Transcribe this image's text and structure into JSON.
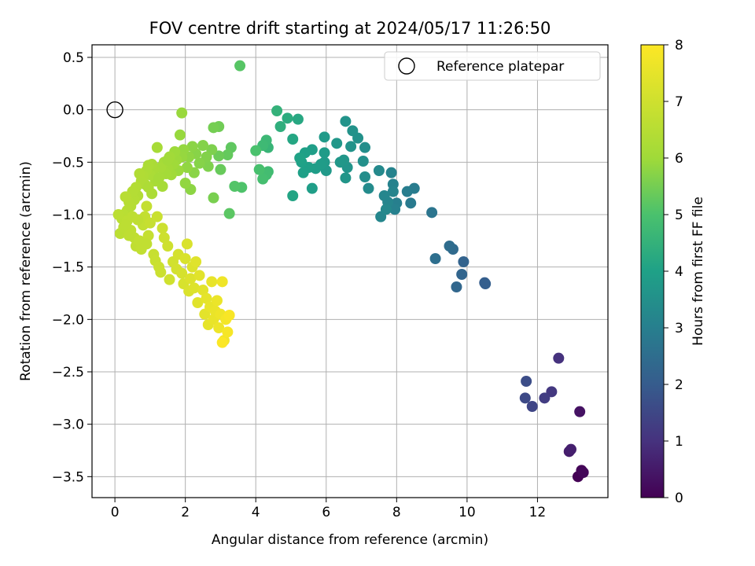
{
  "chart_data": {
    "type": "scatter",
    "title": "FOV centre drift starting at 2024/05/17 11:26:50",
    "xlabel": "Angular distance from reference (arcmin)",
    "ylabel": "Rotation from reference (arcmin)",
    "xlim": [
      -0.65,
      14.0
    ],
    "ylim": [
      -3.7,
      0.62
    ],
    "xticks": [
      0,
      2,
      4,
      6,
      8,
      10,
      12
    ],
    "yticks": [
      0.5,
      0.0,
      -0.5,
      -1.0,
      -1.5,
      -2.0,
      -2.5,
      -3.0,
      -3.5
    ],
    "xtick_labels": [
      "0",
      "2",
      "4",
      "6",
      "8",
      "10",
      "12"
    ],
    "ytick_labels": [
      "0.5",
      "0.0",
      "−0.5",
      "−1.0",
      "−1.5",
      "−2.0",
      "−2.5",
      "−3.0",
      "−3.5"
    ],
    "grid": true,
    "legend": {
      "position": "top-right",
      "entries": [
        "Reference platepar"
      ]
    },
    "reference_point": {
      "x": 0.0,
      "y": 0.0,
      "style": "hollow circle"
    },
    "colorbar": {
      "label": "Hours from first FF file",
      "range": [
        0,
        8
      ],
      "ticks": [
        0,
        1,
        2,
        3,
        4,
        5,
        6,
        7,
        8
      ],
      "tick_labels": [
        "0",
        "1",
        "2",
        "3",
        "4",
        "5",
        "6",
        "7",
        "8"
      ],
      "colormap": "viridis"
    },
    "points": [
      [
        13.15,
        -3.5,
        0.03
      ],
      [
        13.25,
        -3.44,
        0.08
      ],
      [
        13.3,
        -3.46,
        0.12
      ],
      [
        13.2,
        -2.88,
        0.35
      ],
      [
        12.9,
        -3.26,
        0.55
      ],
      [
        12.95,
        -3.24,
        0.62
      ],
      [
        12.6,
        -2.37,
        1.0
      ],
      [
        12.4,
        -2.69,
        1.15
      ],
      [
        12.2,
        -2.75,
        1.25
      ],
      [
        11.85,
        -2.83,
        1.45
      ],
      [
        11.65,
        -2.75,
        1.55
      ],
      [
        11.68,
        -2.59,
        1.65
      ],
      [
        10.5,
        -1.65,
        2.05
      ],
      [
        10.52,
        -1.66,
        2.08
      ],
      [
        9.9,
        -1.45,
        2.2
      ],
      [
        9.85,
        -1.57,
        2.25
      ],
      [
        9.7,
        -1.69,
        2.3
      ],
      [
        9.6,
        -1.33,
        2.4
      ],
      [
        9.5,
        -1.3,
        2.45
      ],
      [
        9.1,
        -1.42,
        2.55
      ],
      [
        9.0,
        -0.98,
        2.7
      ],
      [
        8.4,
        -0.89,
        2.85
      ],
      [
        8.5,
        -0.75,
        2.9
      ],
      [
        8.3,
        -0.78,
        2.95
      ],
      [
        8.0,
        -0.89,
        3.0
      ],
      [
        7.95,
        -0.95,
        3.05
      ],
      [
        7.9,
        -0.71,
        3.1
      ],
      [
        7.85,
        -0.6,
        3.12
      ],
      [
        7.9,
        -0.78,
        3.15
      ],
      [
        7.75,
        -0.88,
        3.18
      ],
      [
        7.65,
        -0.82,
        3.2
      ],
      [
        7.55,
        -1.02,
        3.22
      ],
      [
        7.7,
        -0.95,
        3.25
      ],
      [
        7.5,
        -0.58,
        3.3
      ],
      [
        7.2,
        -0.75,
        3.35
      ],
      [
        7.1,
        -0.64,
        3.4
      ],
      [
        7.1,
        -0.36,
        3.45
      ],
      [
        7.05,
        -0.49,
        3.5
      ],
      [
        6.9,
        -0.27,
        3.52
      ],
      [
        6.75,
        -0.2,
        3.55
      ],
      [
        6.7,
        -0.35,
        3.58
      ],
      [
        6.55,
        -0.11,
        3.6
      ],
      [
        6.6,
        -0.55,
        3.62
      ],
      [
        6.55,
        -0.65,
        3.65
      ],
      [
        6.5,
        -0.48,
        3.68
      ],
      [
        6.4,
        -0.5,
        3.7
      ],
      [
        6.3,
        -0.32,
        3.72
      ],
      [
        6.0,
        -0.58,
        3.75
      ],
      [
        5.95,
        -0.26,
        3.78
      ],
      [
        5.95,
        -0.5,
        3.8
      ],
      [
        5.95,
        -0.41,
        3.82
      ],
      [
        5.85,
        -0.52,
        3.85
      ],
      [
        5.7,
        -0.56,
        3.88
      ],
      [
        5.6,
        -0.38,
        3.9
      ],
      [
        5.6,
        -0.75,
        3.92
      ],
      [
        5.5,
        -0.55,
        3.94
      ],
      [
        5.4,
        -0.41,
        3.96
      ],
      [
        5.35,
        -0.6,
        3.98
      ],
      [
        5.3,
        -0.5,
        4.0
      ],
      [
        5.25,
        -0.46,
        4.02
      ],
      [
        5.05,
        -0.82,
        4.1
      ],
      [
        5.05,
        -0.28,
        4.15
      ],
      [
        5.2,
        -0.09,
        4.2
      ],
      [
        4.9,
        -0.08,
        4.3
      ],
      [
        4.7,
        -0.16,
        4.4
      ],
      [
        4.6,
        -0.01,
        4.5
      ],
      [
        4.35,
        -0.36,
        4.6
      ],
      [
        4.3,
        -0.29,
        4.7
      ],
      [
        4.2,
        -0.34,
        4.75
      ],
      [
        4.35,
        -0.59,
        4.8
      ],
      [
        4.3,
        -0.62,
        4.85
      ],
      [
        4.2,
        -0.66,
        4.9
      ],
      [
        4.1,
        -0.57,
        4.95
      ],
      [
        4.0,
        -0.39,
        5.0
      ],
      [
        3.6,
        -0.74,
        5.05
      ],
      [
        3.4,
        -0.73,
        5.1
      ],
      [
        3.55,
        0.42,
        5.15
      ],
      [
        3.25,
        -0.99,
        5.2
      ],
      [
        3.3,
        -0.36,
        5.25
      ],
      [
        3.2,
        -0.43,
        5.3
      ],
      [
        3.0,
        -0.57,
        5.35
      ],
      [
        2.95,
        -0.44,
        5.4
      ],
      [
        2.95,
        -0.16,
        5.45
      ],
      [
        2.8,
        -0.17,
        5.5
      ],
      [
        2.8,
        -0.84,
        5.55
      ],
      [
        2.75,
        -0.38,
        5.6
      ],
      [
        2.65,
        -0.54,
        5.62
      ],
      [
        2.6,
        -0.45,
        5.65
      ],
      [
        2.5,
        -0.34,
        5.68
      ],
      [
        2.4,
        -0.51,
        5.7
      ],
      [
        2.3,
        -0.42,
        5.72
      ],
      [
        2.25,
        -0.6,
        5.74
      ],
      [
        2.2,
        -0.35,
        5.76
      ],
      [
        2.15,
        -0.76,
        5.78
      ],
      [
        2.1,
        -0.45,
        5.8
      ],
      [
        2.05,
        -0.55,
        5.82
      ],
      [
        2.0,
        -0.7,
        5.84
      ],
      [
        1.95,
        -0.38,
        5.86
      ],
      [
        1.9,
        -0.45,
        5.88
      ],
      [
        1.85,
        -0.24,
        5.9
      ],
      [
        1.9,
        -0.03,
        5.92
      ],
      [
        1.8,
        -0.58,
        5.94
      ],
      [
        1.75,
        -0.48,
        5.96
      ],
      [
        1.7,
        -0.4,
        5.98
      ],
      [
        1.65,
        -0.52,
        6.0
      ],
      [
        1.6,
        -0.62,
        6.02
      ],
      [
        1.55,
        -0.45,
        6.04
      ],
      [
        1.5,
        -0.56,
        6.06
      ],
      [
        1.45,
        -0.61,
        6.08
      ],
      [
        1.4,
        -0.5,
        6.1
      ],
      [
        1.35,
        -0.73,
        6.12
      ],
      [
        1.3,
        -0.55,
        6.14
      ],
      [
        1.2,
        -0.36,
        6.16
      ],
      [
        1.15,
        -0.68,
        6.18
      ],
      [
        1.1,
        -0.57,
        6.2
      ],
      [
        1.05,
        -0.52,
        6.22
      ],
      [
        1.0,
        -0.62,
        6.24
      ],
      [
        0.95,
        -0.53,
        6.26
      ],
      [
        0.9,
        -0.58,
        6.28
      ],
      [
        0.85,
        -0.71,
        6.3
      ],
      [
        0.8,
        -0.63,
        6.32
      ],
      [
        0.75,
        -0.68,
        6.34
      ],
      [
        0.7,
        -0.61,
        6.36
      ],
      [
        0.65,
        -0.82,
        6.38
      ],
      [
        0.6,
        -0.74,
        6.4
      ],
      [
        0.55,
        -0.86,
        6.42
      ],
      [
        0.5,
        -0.78,
        6.44
      ],
      [
        0.45,
        -0.92,
        6.46
      ],
      [
        0.4,
        -0.88,
        6.48
      ],
      [
        0.35,
        -0.96,
        6.5
      ],
      [
        0.3,
        -0.83,
        6.52
      ],
      [
        0.25,
        -1.0,
        6.54
      ],
      [
        0.2,
        -1.04,
        6.56
      ],
      [
        0.15,
        -1.18,
        6.58
      ],
      [
        0.25,
        -1.12,
        6.6
      ],
      [
        0.35,
        -1.06,
        6.62
      ],
      [
        0.45,
        -1.15,
        6.64
      ],
      [
        0.55,
        -1.22,
        6.66
      ],
      [
        0.6,
        -1.3,
        6.68
      ],
      [
        0.7,
        -1.25,
        6.7
      ],
      [
        0.75,
        -1.33,
        6.72
      ],
      [
        0.8,
        -1.1,
        6.74
      ],
      [
        0.85,
        -1.02,
        6.76
      ],
      [
        0.9,
        -0.92,
        6.78
      ],
      [
        0.95,
        -1.2,
        6.8
      ],
      [
        1.0,
        -1.08,
        6.82
      ],
      [
        1.1,
        -1.38,
        6.84
      ],
      [
        1.15,
        -1.44,
        6.86
      ],
      [
        1.2,
        -1.02,
        6.88
      ],
      [
        1.25,
        -1.5,
        6.9
      ],
      [
        1.3,
        -1.55,
        6.92
      ],
      [
        1.35,
        -1.13,
        6.94
      ],
      [
        1.4,
        -1.22,
        6.96
      ],
      [
        1.5,
        -1.3,
        6.98
      ],
      [
        1.55,
        -1.62,
        7.0
      ],
      [
        1.65,
        -1.45,
        7.05
      ],
      [
        1.75,
        -1.52,
        7.1
      ],
      [
        1.8,
        -1.38,
        7.12
      ],
      [
        1.9,
        -1.56,
        7.15
      ],
      [
        1.95,
        -1.66,
        7.18
      ],
      [
        2.0,
        -1.42,
        7.2
      ],
      [
        2.05,
        -1.28,
        7.22
      ],
      [
        2.1,
        -1.73,
        7.25
      ],
      [
        2.15,
        -1.61,
        7.28
      ],
      [
        2.2,
        -1.5,
        7.3
      ],
      [
        2.25,
        -1.7,
        7.32
      ],
      [
        2.3,
        -1.45,
        7.35
      ],
      [
        2.35,
        -1.84,
        7.38
      ],
      [
        2.4,
        -1.58,
        7.4
      ],
      [
        2.5,
        -1.72,
        7.42
      ],
      [
        2.55,
        -1.95,
        7.45
      ],
      [
        2.6,
        -1.8,
        7.48
      ],
      [
        2.65,
        -2.05,
        7.5
      ],
      [
        2.7,
        -1.88,
        7.52
      ],
      [
        2.75,
        -1.64,
        7.55
      ],
      [
        2.8,
        -2.0,
        7.58
      ],
      [
        2.85,
        -1.92,
        7.6
      ],
      [
        2.9,
        -1.82,
        7.62
      ],
      [
        2.95,
        -2.08,
        7.65
      ],
      [
        3.0,
        -1.95,
        7.68
      ],
      [
        3.05,
        -1.64,
        7.7
      ],
      [
        3.1,
        -2.2,
        7.75
      ],
      [
        3.15,
        -2.0,
        7.8
      ],
      [
        3.2,
        -2.12,
        7.85
      ],
      [
        3.25,
        -1.96,
        7.9
      ],
      [
        3.05,
        -2.22,
        7.95
      ],
      [
        0.1,
        -1.0,
        6.57
      ],
      [
        0.3,
        -1.1,
        6.61
      ],
      [
        0.5,
        -1.02,
        6.63
      ],
      [
        0.4,
        -1.2,
        6.65
      ],
      [
        0.65,
        -1.05,
        6.67
      ],
      [
        0.9,
        -1.28,
        6.71
      ],
      [
        1.05,
        -0.8,
        6.25
      ],
      [
        0.95,
        -0.74,
        6.29
      ],
      [
        1.25,
        -0.65,
        6.13
      ],
      [
        1.5,
        -0.48,
        6.05
      ]
    ]
  }
}
